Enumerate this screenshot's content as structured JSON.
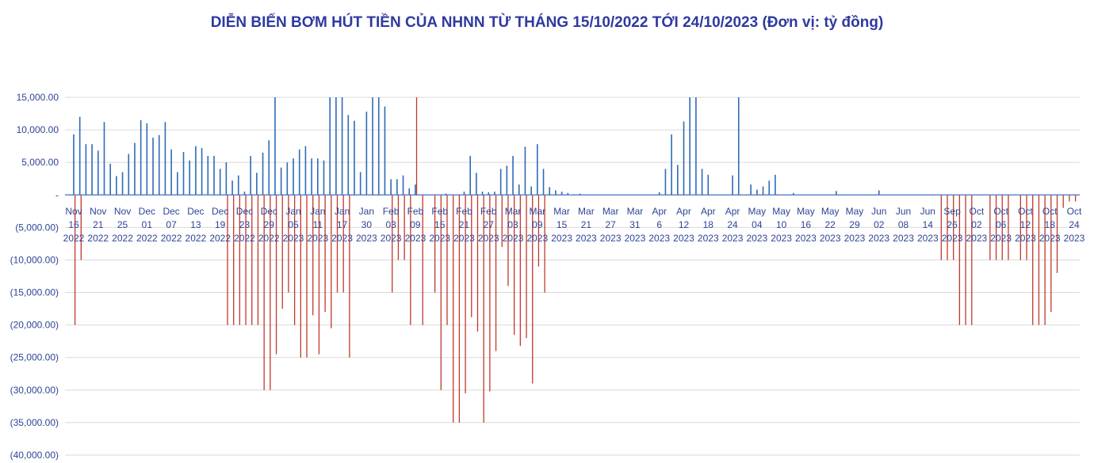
{
  "chart_data": {
    "type": "bar",
    "title": "DIỄN BIẾN BƠM HÚT TIỀN CỦA NHNN TỪ THÁNG 15/10/2022 TỚI 24/10/2023 (Đơn vị: tỷ đồng)",
    "ylim": [
      -40000,
      15000
    ],
    "yticks": [
      {
        "value": 15000,
        "label": "15,000.00"
      },
      {
        "value": 10000,
        "label": "10,000.00"
      },
      {
        "value": 5000,
        "label": "5,000.00"
      },
      {
        "value": 0,
        "label": "-"
      },
      {
        "value": -5000,
        "label": "(5,000.00)"
      },
      {
        "value": -10000,
        "label": "(10,000.00)"
      },
      {
        "value": -15000,
        "label": "(15,000.00)"
      },
      {
        "value": -20000,
        "label": "(20,000.00)"
      },
      {
        "value": -25000,
        "label": "(25,000.00)"
      },
      {
        "value": -30000,
        "label": "(30,000.00)"
      },
      {
        "value": -35000,
        "label": "(35,000.00)"
      },
      {
        "value": -40000,
        "label": "(40,000.00)"
      }
    ],
    "grid": true,
    "categories": [
      "Nov 16 2022",
      null,
      null,
      null,
      "Nov 21 2022",
      null,
      null,
      null,
      "Nov 25 2022",
      null,
      null,
      null,
      "Dec 01 2022",
      null,
      null,
      null,
      "Dec 07 2022",
      null,
      null,
      null,
      "Dec 13 2022",
      null,
      null,
      null,
      "Dec 19 2022",
      null,
      null,
      null,
      "Dec 23 2022",
      null,
      null,
      null,
      "Dec 29 2022",
      null,
      null,
      null,
      "Jan 05 2023",
      null,
      null,
      null,
      "Jan 11 2023",
      null,
      null,
      null,
      "Jan 17 2023",
      null,
      null,
      null,
      "Jan 30 2023",
      null,
      null,
      null,
      "Feb 03 2023",
      null,
      null,
      null,
      "Feb 09 2023",
      null,
      null,
      null,
      "Feb 15 2023",
      null,
      null,
      null,
      "Feb 21 2023",
      null,
      null,
      null,
      "Feb 27 2023",
      null,
      null,
      null,
      "Mar 03 2023",
      null,
      null,
      null,
      "Mar 09 2023",
      null,
      null,
      null,
      "Mar 15 2023",
      null,
      null,
      null,
      "Mar 21 2023",
      null,
      null,
      null,
      "Mar 27 2023",
      null,
      null,
      null,
      "Mar 31 2023",
      null,
      null,
      null,
      "Apr 6 2023",
      null,
      null,
      null,
      "Apr 12 2023",
      null,
      null,
      null,
      "Apr 18 2023",
      null,
      null,
      null,
      "Apr 24 2023",
      null,
      null,
      null,
      "May 04 2023",
      null,
      null,
      null,
      "May 10 2023",
      null,
      null,
      null,
      "May 16 2023",
      null,
      null,
      null,
      "May 22 2023",
      null,
      null,
      null,
      "May 29 2023",
      null,
      null,
      null,
      "Jun 02 2023",
      null,
      null,
      null,
      "Jun 08 2023",
      null,
      null,
      null,
      "Jun 14 2023",
      null,
      null,
      null,
      "Sep 26 2023",
      null,
      null,
      null,
      "Oct 02 2023",
      null,
      null,
      null,
      "Oct 06 2023",
      null,
      null,
      null,
      "Oct 12 2023",
      null,
      null,
      null,
      "Oct 18 2023",
      null,
      null,
      null,
      "Oct 24 2023"
    ],
    "series": [
      {
        "color": "#2e6bb8",
        "values": [
          9300,
          12000,
          7800,
          7800,
          6800,
          11200,
          4800,
          2900,
          3500,
          6300,
          8000,
          11500,
          11000,
          8800,
          9200,
          11200,
          7000,
          3500,
          6600,
          5300,
          7500,
          7200,
          6000,
          6000,
          4000,
          5000,
          2200,
          3000,
          500,
          6000,
          3400,
          6500,
          8400,
          15000,
          4200,
          5000,
          5600,
          7000,
          7500,
          5600,
          5600,
          5300,
          15000,
          15000,
          15000,
          12300,
          11400,
          3500,
          12800,
          15000,
          15000,
          13600,
          2400,
          2400,
          3000,
          1000,
          1600,
          null,
          null,
          null,
          null,
          200,
          null,
          null,
          500,
          6000,
          3400,
          500,
          400,
          500,
          4000,
          4500,
          6000,
          1600,
          7400,
          1300,
          7800,
          4000,
          1200,
          700,
          500,
          300,
          100,
          200,
          null,
          null,
          null,
          null,
          null,
          null,
          null,
          null,
          null,
          null,
          null,
          null,
          400,
          4000,
          9300,
          4600,
          11300,
          15000,
          15000,
          4000,
          3100,
          null,
          null,
          null,
          3000,
          15000,
          null,
          1600,
          800,
          1300,
          2200,
          3100,
          null,
          null,
          300,
          null,
          null,
          null,
          null,
          null,
          null,
          600,
          null,
          null,
          null,
          null,
          null,
          null,
          700,
          null,
          null,
          null,
          null,
          null,
          null,
          null,
          null,
          null,
          null,
          null,
          null,
          null,
          null,
          null,
          null,
          null,
          null,
          null,
          null,
          null,
          null,
          null,
          null,
          null,
          null,
          null,
          null,
          null,
          null,
          null,
          null
        ]
      },
      {
        "color": "#c0392b",
        "values": [
          -20000,
          -10000,
          null,
          null,
          null,
          null,
          null,
          null,
          null,
          null,
          null,
          null,
          null,
          null,
          null,
          null,
          null,
          null,
          null,
          null,
          null,
          null,
          null,
          null,
          null,
          -20000,
          -20000,
          -20000,
          -20000,
          -20000,
          -20000,
          -30000,
          -30000,
          -24500,
          -17500,
          -15000,
          -20000,
          -25000,
          -25000,
          -18500,
          -24500,
          -18000,
          -20500,
          -15000,
          -15000,
          -25000,
          null,
          null,
          null,
          null,
          null,
          null,
          -15000,
          -10000,
          -10000,
          -20000,
          15000,
          -20000,
          null,
          -15000,
          -30000,
          -20000,
          -35000,
          -35000,
          -30500,
          -18800,
          -21000,
          -35000,
          -30200,
          -24000,
          -8000,
          -14000,
          -21500,
          -23200,
          -22000,
          -29000,
          -11000,
          -15000,
          null,
          null,
          null,
          null,
          null,
          null,
          null,
          null,
          null,
          null,
          null,
          null,
          null,
          null,
          null,
          null,
          null,
          null,
          null,
          null,
          null,
          null,
          null,
          null,
          null,
          null,
          null,
          null,
          null,
          null,
          null,
          null,
          null,
          null,
          null,
          null,
          null,
          null,
          null,
          null,
          null,
          null,
          null,
          null,
          null,
          null,
          null,
          null,
          null,
          null,
          null,
          null,
          null,
          null,
          null,
          null,
          null,
          null,
          null,
          null,
          null,
          null,
          null,
          null,
          -10000,
          -10000,
          -10000,
          -20000,
          -20000,
          -20000,
          null,
          null,
          -10000,
          -10000,
          -10000,
          -10000,
          null,
          -10000,
          -10000,
          -20000,
          -20000,
          -20000,
          -18000,
          -12000,
          -2000,
          -1000,
          -1000
        ]
      }
    ]
  }
}
